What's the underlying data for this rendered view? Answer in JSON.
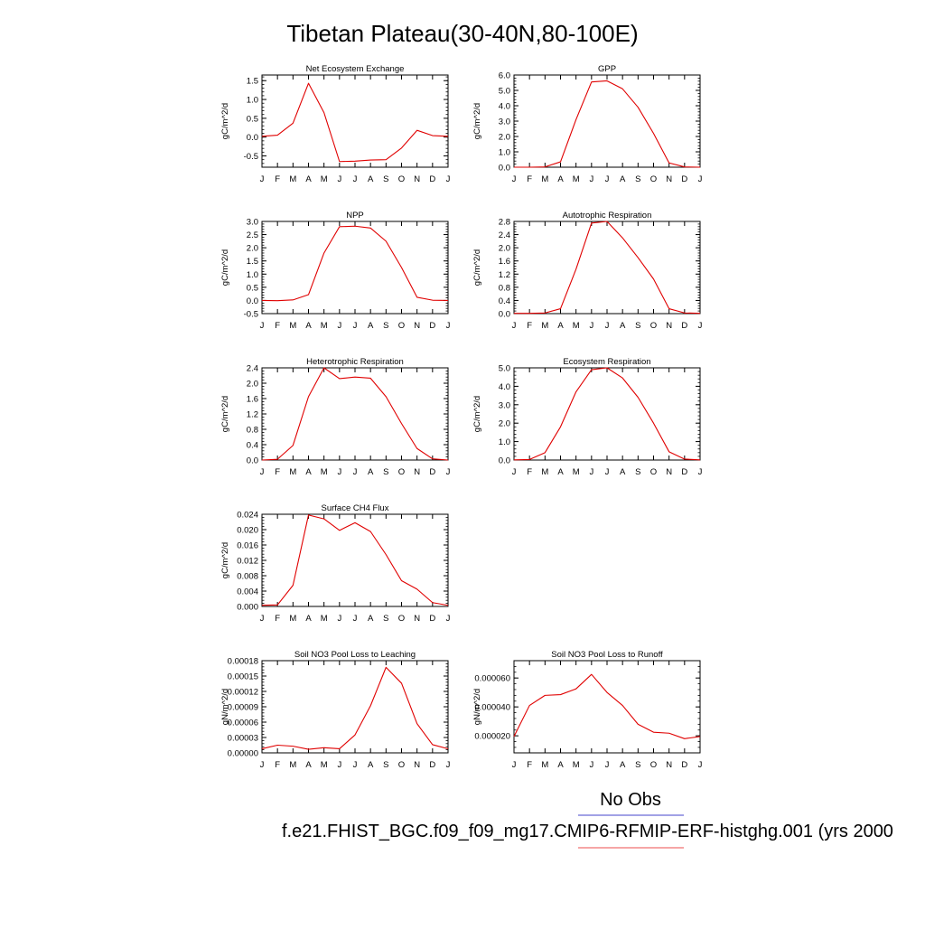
{
  "page_title": "Tibetan Plateau(30-40N,80-100E)",
  "legend": {
    "obs_label": "No Obs",
    "obs_color": "#6b6bd6",
    "model_label": "f.e21.FHIST_BGC.f09_f09_mg17.CMIP6-RFMIP-ERF-histghg.001 (yrs 2000",
    "model_color": "#f07070"
  },
  "line_color": "#e00000",
  "months": [
    "J",
    "F",
    "M",
    "A",
    "M",
    "J",
    "J",
    "A",
    "S",
    "O",
    "N",
    "D",
    "J"
  ],
  "chart_data": [
    {
      "type": "line",
      "title": "Net Ecosystem Exchange",
      "ylabel": "gC/m^2/d",
      "ylim": [
        -0.8,
        1.65
      ],
      "yticks": [
        -0.5,
        0.0,
        0.5,
        1.0,
        1.5
      ],
      "yticklabels": [
        "-0.5",
        "0.0",
        "0.5",
        "1.0",
        "1.5"
      ],
      "x": [
        "J",
        "F",
        "M",
        "A",
        "M",
        "J",
        "J",
        "A",
        "S",
        "O",
        "N",
        "D",
        "J"
      ],
      "values": [
        0.02,
        0.05,
        0.37,
        1.43,
        0.65,
        -0.65,
        -0.64,
        -0.61,
        -0.6,
        -0.29,
        0.18,
        0.04,
        0.02
      ]
    },
    {
      "type": "line",
      "title": "GPP",
      "ylabel": "gC/m^2/d",
      "ylim": [
        0.0,
        6.0
      ],
      "yticks": [
        0,
        1,
        2,
        3,
        4,
        5,
        6
      ],
      "yticklabels": [
        "0.0",
        "1.0",
        "2.0",
        "3.0",
        "4.0",
        "5.0",
        "6.0"
      ],
      "x": [
        "J",
        "F",
        "M",
        "A",
        "M",
        "J",
        "J",
        "A",
        "S",
        "O",
        "N",
        "D",
        "J"
      ],
      "values": [
        0.0,
        0.0,
        0.02,
        0.35,
        3.1,
        5.55,
        5.62,
        5.1,
        3.9,
        2.2,
        0.28,
        0.02,
        0.0
      ]
    },
    {
      "type": "line",
      "title": "NPP",
      "ylabel": "gC/m^2/d",
      "ylim": [
        -0.5,
        3.0
      ],
      "yticks": [
        -0.5,
        0.0,
        0.5,
        1.0,
        1.5,
        2.0,
        2.5,
        3.0
      ],
      "yticklabels": [
        "-0.5",
        "0.0",
        "0.5",
        "1.0",
        "1.5",
        "2.0",
        "2.5",
        "3.0"
      ],
      "x": [
        "J",
        "F",
        "M",
        "A",
        "M",
        "J",
        "J",
        "A",
        "S",
        "O",
        "N",
        "D",
        "J"
      ],
      "values": [
        0.0,
        -0.01,
        0.02,
        0.22,
        1.8,
        2.8,
        2.82,
        2.75,
        2.25,
        1.25,
        0.12,
        0.01,
        0.0
      ]
    },
    {
      "type": "line",
      "title": "Autotrophic Respiration",
      "ylabel": "gC/m^2/d",
      "ylim": [
        0.0,
        2.8
      ],
      "yticks": [
        0.0,
        0.4,
        0.8,
        1.2,
        1.6,
        2.0,
        2.4,
        2.8
      ],
      "yticklabels": [
        "0.0",
        "0.4",
        "0.8",
        "1.2",
        "1.6",
        "2.0",
        "2.4",
        "2.8"
      ],
      "x": [
        "J",
        "F",
        "M",
        "A",
        "M",
        "J",
        "J",
        "A",
        "S",
        "O",
        "N",
        "D",
        "J"
      ],
      "values": [
        0.01,
        0.01,
        0.02,
        0.15,
        1.35,
        2.75,
        2.8,
        2.3,
        1.7,
        1.05,
        0.15,
        0.02,
        0.01
      ]
    },
    {
      "type": "line",
      "title": "Heterotrophic Respiration",
      "ylabel": "gC/m^2/d",
      "ylim": [
        0.0,
        2.4
      ],
      "yticks": [
        0.0,
        0.4,
        0.8,
        1.2,
        1.6,
        2.0,
        2.4
      ],
      "yticklabels": [
        "0.0",
        "0.4",
        "0.8",
        "1.2",
        "1.6",
        "2.0",
        "2.4"
      ],
      "x": [
        "J",
        "F",
        "M",
        "A",
        "M",
        "J",
        "J",
        "A",
        "S",
        "O",
        "N",
        "D",
        "J"
      ],
      "values": [
        0.0,
        0.02,
        0.38,
        1.65,
        2.4,
        2.12,
        2.16,
        2.13,
        1.65,
        0.95,
        0.3,
        0.03,
        0.0
      ]
    },
    {
      "type": "line",
      "title": "Ecosystem Respiration",
      "ylabel": "gC/m^2/d",
      "ylim": [
        0.0,
        5.0
      ],
      "yticks": [
        0,
        1,
        2,
        3,
        4,
        5
      ],
      "yticklabels": [
        "0.0",
        "1.0",
        "2.0",
        "3.0",
        "4.0",
        "5.0"
      ],
      "x": [
        "J",
        "F",
        "M",
        "A",
        "M",
        "J",
        "J",
        "A",
        "S",
        "O",
        "N",
        "D",
        "J"
      ],
      "values": [
        0.01,
        0.03,
        0.4,
        1.8,
        3.7,
        4.9,
        5.0,
        4.45,
        3.4,
        2.0,
        0.45,
        0.05,
        0.01
      ]
    },
    {
      "type": "line",
      "title": "Surface CH4 Flux",
      "ylabel": "gC/m^2/d",
      "ylim": [
        0.0,
        0.024
      ],
      "yticks": [
        0.0,
        0.004,
        0.008,
        0.012,
        0.016,
        0.02,
        0.024
      ],
      "yticklabels": [
        "0.000",
        "0.004",
        "0.008",
        "0.012",
        "0.016",
        "0.020",
        "0.024"
      ],
      "x": [
        "J",
        "F",
        "M",
        "A",
        "M",
        "J",
        "J",
        "A",
        "S",
        "O",
        "N",
        "D",
        "J"
      ],
      "values": [
        0.0003,
        0.0004,
        0.0055,
        0.0238,
        0.0228,
        0.0198,
        0.0218,
        0.0195,
        0.0135,
        0.0067,
        0.0045,
        0.001,
        0.0003
      ]
    },
    {
      "type": "line",
      "title": "Soil NO3 Pool Loss to Leaching",
      "ylabel": "gN/m^2/d",
      "ylim": [
        0.0,
        0.00018
      ],
      "yticks": [
        0.0,
        3e-05,
        6e-05,
        9e-05,
        0.00012,
        0.00015,
        0.00018
      ],
      "yticklabels": [
        "0.00000",
        "0.00003",
        "0.00006",
        "0.00009",
        "0.00012",
        "0.00015",
        "0.00018"
      ],
      "x": [
        "J",
        "F",
        "M",
        "A",
        "M",
        "J",
        "J",
        "A",
        "S",
        "O",
        "N",
        "D",
        "J"
      ],
      "values": [
        8e-06,
        1.5e-05,
        1.3e-05,
        7e-06,
        1e-05,
        8e-06,
        3.5e-05,
        9.2e-05,
        0.000167,
        0.000136,
        5.7e-05,
        1.6e-05,
        8e-06
      ]
    },
    {
      "type": "line",
      "title": "Soil NO3 Pool Loss to Runoff",
      "ylabel": "gN/m^2/d",
      "ylim": [
        8.2e-06,
        7.2e-05
      ],
      "yticks": [
        2e-05,
        4e-05,
        6e-05
      ],
      "yticklabels": [
        "0.000020",
        "0.000040",
        "0.000060"
      ],
      "x": [
        "J",
        "F",
        "M",
        "A",
        "M",
        "J",
        "J",
        "A",
        "S",
        "O",
        "N",
        "D",
        "J"
      ],
      "values": [
        1.95e-05,
        4.1e-05,
        4.8e-05,
        4.85e-05,
        5.25e-05,
        6.25e-05,
        5e-05,
        4.1e-05,
        2.8e-05,
        2.25e-05,
        2.18e-05,
        1.8e-05,
        1.95e-05
      ]
    }
  ]
}
